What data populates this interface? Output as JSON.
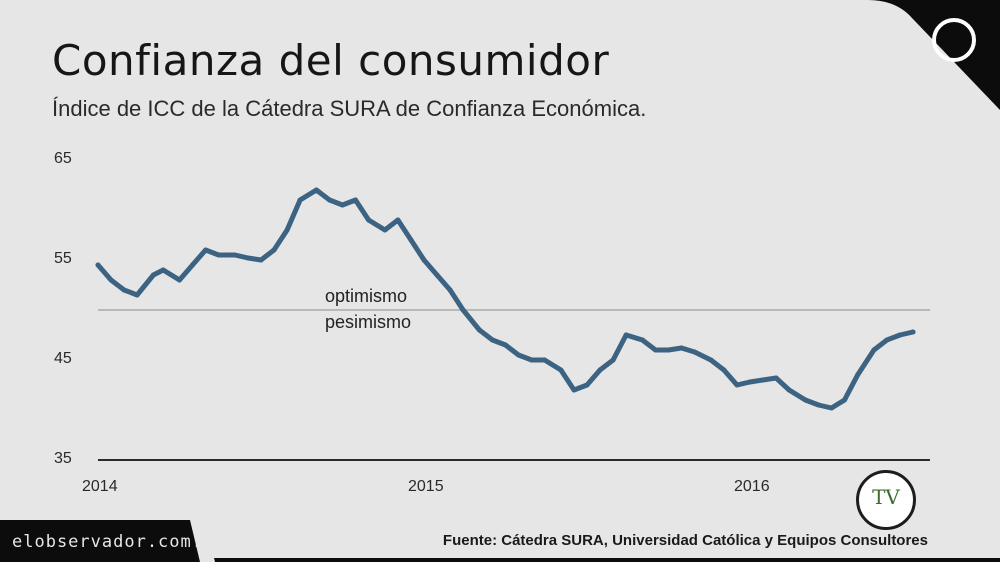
{
  "header": {
    "title": "Confianza del consumidor",
    "subtitle": "Índice de ICC de la Cátedra SURA de Confianza Económica."
  },
  "footer": {
    "site": "elobservador.com.uy",
    "source": "Fuente: Cátedra SURA, Universidad Católica y Equipos Consultores"
  },
  "logo": {
    "text": "TV"
  },
  "colors": {
    "panel": "#e6e6e6",
    "frame": "#0c0c0c",
    "line": "#3d6383",
    "reference": "#a7aaa8",
    "axis": "#2b2b2b"
  },
  "chart_data": {
    "type": "line",
    "title": "Confianza del consumidor",
    "subtitle": "Índice de ICC de la Cátedra SURA de Confianza Económica.",
    "xlabel": "",
    "ylabel": "",
    "xlim": [
      2014.0,
      2016.55
    ],
    "ylim": [
      35,
      65
    ],
    "yticks": [
      "65",
      "55",
      "45",
      "35"
    ],
    "xticks": [
      "2014",
      "2015",
      "2016"
    ],
    "reference_line": {
      "value": 50,
      "label_above": "optimismo",
      "label_below": "pesimismo"
    },
    "series": [
      {
        "name": "ICC",
        "x": [
          2014.0,
          2014.04,
          2014.08,
          2014.12,
          2014.17,
          2014.2,
          2014.25,
          2014.29,
          2014.33,
          2014.37,
          2014.42,
          2014.46,
          2014.5,
          2014.54,
          2014.58,
          2014.62,
          2014.67,
          2014.71,
          2014.75,
          2014.79,
          2014.83,
          2014.88,
          2014.92,
          2014.96,
          2015.0,
          2015.04,
          2015.08,
          2015.12,
          2015.17,
          2015.21,
          2015.25,
          2015.29,
          2015.33,
          2015.37,
          2015.42,
          2015.46,
          2015.5,
          2015.54,
          2015.58,
          2015.62,
          2015.67,
          2015.71,
          2015.75,
          2015.79,
          2015.83,
          2015.88,
          2015.92,
          2015.96,
          2016.0,
          2016.04,
          2016.08,
          2016.12,
          2016.17,
          2016.21,
          2016.25,
          2016.29,
          2016.33,
          2016.38,
          2016.42,
          2016.46,
          2016.5
        ],
        "values": [
          54.5,
          53.0,
          52.0,
          51.5,
          53.5,
          54.0,
          53.0,
          54.5,
          56.0,
          55.5,
          55.5,
          55.2,
          55.0,
          56.0,
          58.0,
          61.0,
          62.0,
          61.0,
          60.5,
          61.0,
          59.0,
          58.0,
          59.0,
          57.0,
          55.0,
          53.5,
          52.0,
          50.0,
          48.0,
          47.0,
          46.5,
          45.5,
          45.0,
          45.0,
          44.0,
          42.0,
          42.5,
          44.0,
          45.0,
          47.5,
          47.0,
          46.0,
          46.0,
          46.2,
          45.8,
          45.0,
          44.0,
          42.5,
          42.8,
          43.0,
          43.2,
          42.0,
          41.0,
          40.5,
          40.2,
          41.0,
          43.5,
          46.0,
          47.0,
          47.5,
          47.8
        ]
      }
    ]
  }
}
